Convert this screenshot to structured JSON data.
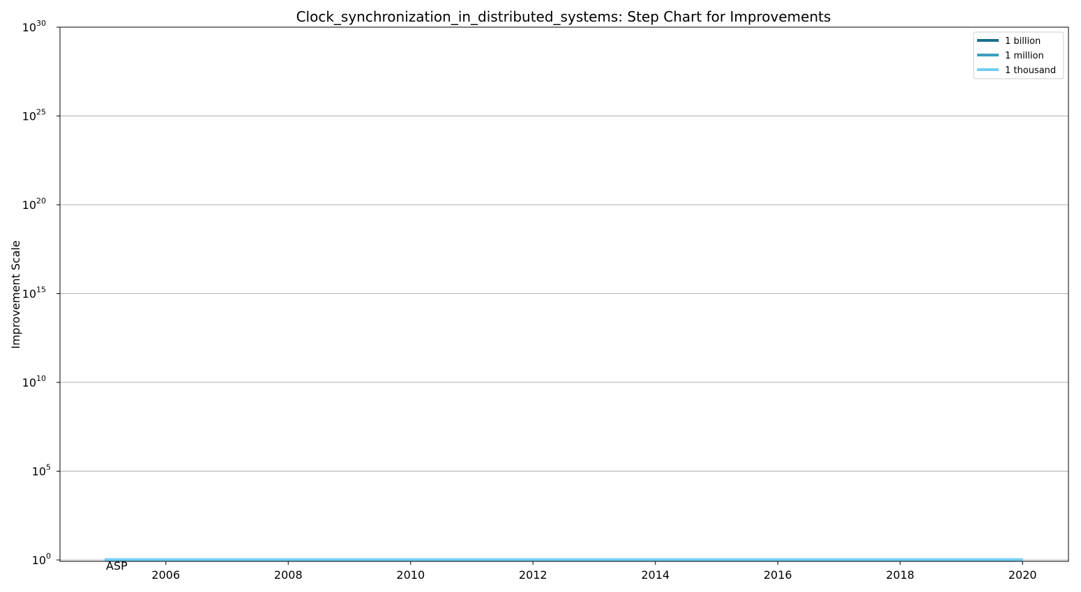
{
  "chart_data": {
    "type": "line",
    "title": "Clock_synchronization_in_distributed_systems: Step Chart for Improvements",
    "xlabel": "",
    "ylabel": "Improvement Scale",
    "yscale": "log",
    "ylim": [
      1,
      1e+30
    ],
    "xlim": [
      2004.27,
      2020.75
    ],
    "x_ticks": [
      2006,
      2008,
      2010,
      2012,
      2014,
      2016,
      2018,
      2020
    ],
    "y_ticks": [
      {
        "base": "10",
        "exp": "0"
      },
      {
        "base": "10",
        "exp": "5"
      },
      {
        "base": "10",
        "exp": "10"
      },
      {
        "base": "10",
        "exp": "15"
      },
      {
        "base": "10",
        "exp": "20"
      },
      {
        "base": "10",
        "exp": "25"
      },
      {
        "base": "10",
        "exp": "30"
      }
    ],
    "grid": "y-major",
    "legend_position": "top-right",
    "series": [
      {
        "name": "1 billion",
        "color": "#1a6e8e",
        "x": [
          2005,
          2020
        ],
        "y": [
          1,
          1
        ]
      },
      {
        "name": "1 million",
        "color": "#3a9fbf",
        "x": [
          2005,
          2020
        ],
        "y": [
          1,
          1
        ]
      },
      {
        "name": "1 thousand",
        "color": "#73cdf5",
        "x": [
          2005,
          2020
        ],
        "y": [
          1,
          1
        ]
      }
    ],
    "annotations": [
      {
        "text": "ASP",
        "x": 2005,
        "y": 1
      }
    ]
  }
}
